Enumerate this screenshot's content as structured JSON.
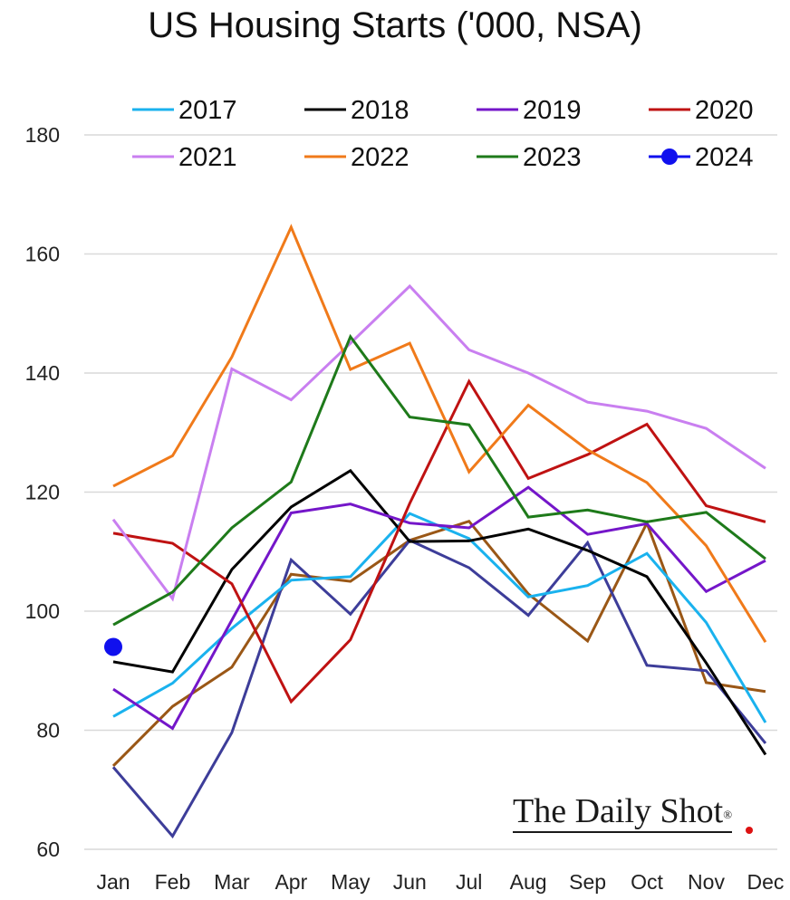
{
  "chart_data": {
    "type": "line",
    "title": "US Housing Starts ('000, NSA)",
    "xlabel": "",
    "ylabel": "",
    "ylim": [
      60,
      180
    ],
    "yticks": [
      60,
      80,
      100,
      120,
      140,
      160,
      180
    ],
    "grid": true,
    "legend_position": "top",
    "categories": [
      "Jan",
      "Feb",
      "Mar",
      "Apr",
      "May",
      "Jun",
      "Jul",
      "Aug",
      "Sep",
      "Oct",
      "Nov",
      "Dec"
    ],
    "series": [
      {
        "name": "2017",
        "color": "#1ab2ee",
        "values": [
          82.3,
          87.9,
          97.1,
          105.2,
          105.8,
          116.4,
          112.2,
          102.4,
          104.3,
          109.7,
          98.1,
          81.3
        ]
      },
      {
        "name": "2018",
        "color": "#000000",
        "values": [
          91.5,
          89.8,
          107.0,
          117.5,
          123.6,
          111.7,
          111.8,
          113.8,
          110.2,
          105.8,
          91.3,
          75.9
        ]
      },
      {
        "name": "2019",
        "color": "#7416c9",
        "values": [
          86.9,
          80.3,
          98.5,
          116.5,
          118.0,
          114.8,
          114.0,
          120.8,
          112.9,
          114.7,
          103.3,
          108.5
        ]
      },
      {
        "name": "2020",
        "color": "#bf1212",
        "values": [
          113.1,
          111.4,
          104.6,
          84.8,
          95.2,
          118.1,
          138.6,
          122.3,
          126.3,
          131.4,
          117.7,
          115.0
        ]
      },
      {
        "name": "2021",
        "color": "#c97ff0",
        "values": [
          115.4,
          102.1,
          140.7,
          135.5,
          145.0,
          154.6,
          143.9,
          140.0,
          135.1,
          133.6,
          130.7,
          124.0
        ]
      },
      {
        "name": "2022",
        "color": "#f07a1a",
        "values": [
          121.0,
          126.1,
          142.7,
          164.5,
          140.6,
          145.0,
          123.4,
          134.6,
          127.1,
          121.6,
          111.0,
          94.8
        ]
      },
      {
        "name": "2023",
        "color": "#1e7a1a",
        "values": [
          97.7,
          103.2,
          114.0,
          121.7,
          146.1,
          132.6,
          131.3,
          115.8,
          117.0,
          115.0,
          116.6,
          108.8
        ]
      },
      {
        "name": "2024",
        "color": "#1010ee",
        "marker": "circle",
        "values": [
          94.0,
          null,
          null,
          null,
          null,
          null,
          null,
          null,
          null,
          null,
          null,
          null
        ]
      },
      {
        "color": "#9a5716",
        "values": [
          74.0,
          84.0,
          90.6,
          106.2,
          105.0,
          111.9,
          115.1,
          102.9,
          95.0,
          114.8,
          88.0,
          86.5
        ]
      },
      {
        "color": "#3d3d99",
        "values": [
          73.8,
          62.2,
          79.6,
          108.6,
          99.5,
          111.9,
          107.3,
          99.3,
          111.5,
          90.9,
          90.0,
          77.8
        ]
      }
    ]
  },
  "brand": {
    "name": "The Daily Shot",
    "mark": "®"
  }
}
